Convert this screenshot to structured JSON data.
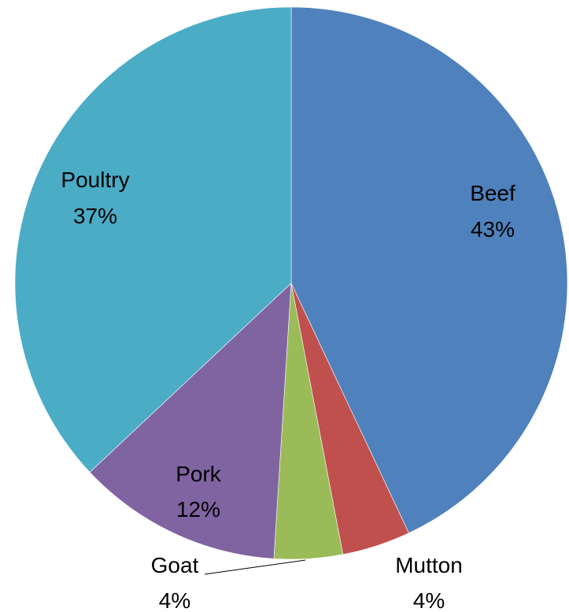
{
  "chart_data": {
    "type": "pie",
    "title": "",
    "slices": [
      {
        "name": "Beef",
        "percent_label": "43%",
        "value": 43,
        "color": "#4f81bd"
      },
      {
        "name": "Mutton",
        "percent_label": "4%",
        "value": 4,
        "color": "#c0504d"
      },
      {
        "name": "Goat",
        "percent_label": "4%",
        "value": 4,
        "color": "#9bbb59"
      },
      {
        "name": "Pork",
        "percent_label": "12%",
        "value": 12,
        "color": "#8064a2"
      },
      {
        "name": "Poultry",
        "percent_label": "37%",
        "value": 37,
        "color": "#4bacc6"
      }
    ],
    "start_angle_deg": 0,
    "direction": "clockwise",
    "legend": "none"
  }
}
